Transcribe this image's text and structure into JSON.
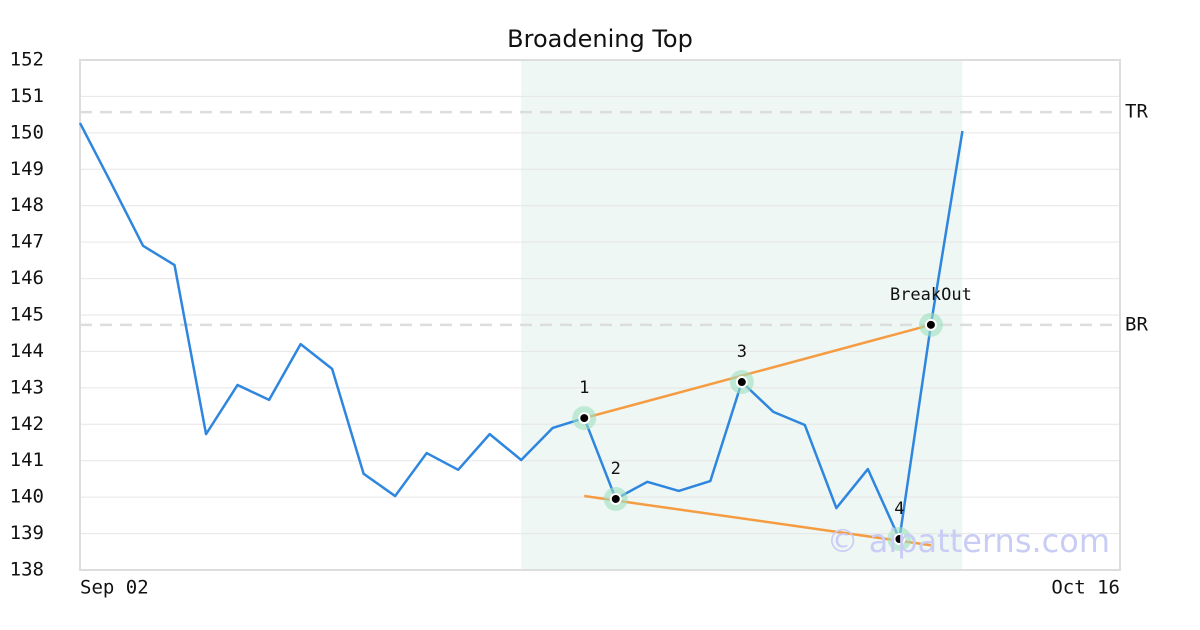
{
  "chart_data": {
    "type": "line",
    "title": "Broadening Top",
    "x": [
      0,
      1,
      2,
      3,
      4,
      5,
      6,
      7,
      8,
      9,
      10,
      11,
      12,
      13,
      14,
      15,
      16,
      17,
      18,
      19,
      20,
      21,
      22,
      23,
      24,
      25,
      26,
      27,
      28
    ],
    "xlim": [
      0,
      33
    ],
    "xticks": [
      {
        "value": 0,
        "label": "Sep 02"
      },
      {
        "value": 33,
        "label": "Oct 16"
      }
    ],
    "ylim": [
      138,
      152
    ],
    "yticks": [
      138,
      139,
      140,
      141,
      142,
      143,
      144,
      145,
      146,
      147,
      148,
      149,
      150,
      151,
      152
    ],
    "grid": true,
    "series": [
      {
        "color": "#2e86de",
        "values": [
          150.27,
          148.6,
          146.9,
          146.37,
          141.73,
          143.08,
          142.67,
          144.2,
          143.52,
          140.64,
          140.03,
          141.21,
          140.75,
          141.73,
          141.02,
          141.9,
          142.17,
          139.95,
          140.42,
          140.17,
          140.44,
          143.16,
          142.34,
          141.98,
          139.7,
          140.77,
          138.85,
          144.73,
          150.05
        ]
      }
    ],
    "trendlines": [
      {
        "color": "#f59c42",
        "x": [
          16,
          27
        ],
        "values": [
          142.17,
          144.73
        ]
      },
      {
        "color": "#f59c42",
        "x": [
          16,
          27
        ],
        "values": [
          140.03,
          138.68
        ]
      }
    ],
    "pattern_points": [
      {
        "label": "1",
        "x": 16,
        "value": 142.17
      },
      {
        "label": "2",
        "x": 17,
        "value": 139.95
      },
      {
        "label": "3",
        "x": 21,
        "value": 143.16
      },
      {
        "label": "4",
        "x": 26,
        "value": 138.85
      },
      {
        "label": "BreakOut",
        "x": 27,
        "value": 144.73
      }
    ],
    "hlines": [
      {
        "label": "TR",
        "value": 150.57
      },
      {
        "label": "BR",
        "value": 144.73
      }
    ],
    "highlight_x": [
      14,
      28
    ],
    "highlight_color": "#eef7f3",
    "watermark": "© aipatterns.com"
  }
}
